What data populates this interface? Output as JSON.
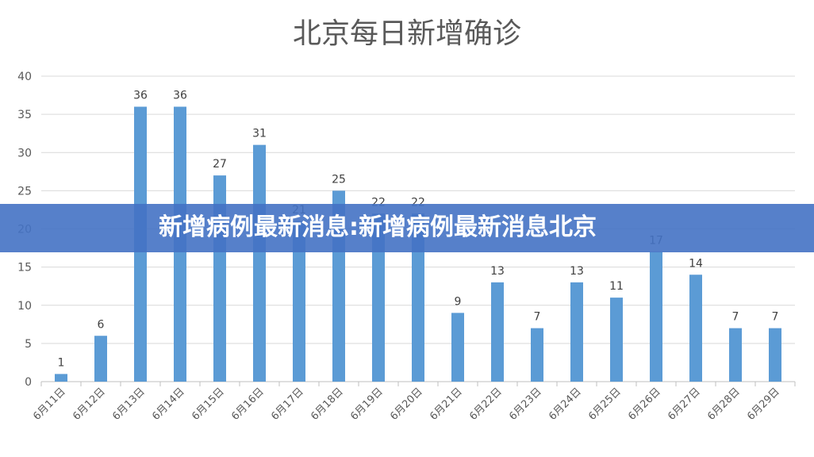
{
  "banner": {
    "text": "新增病例最新消息:新增病例最新消息北京"
  },
  "chart_data": {
    "type": "bar",
    "title": "北京每日新增确诊",
    "xlabel": "",
    "ylabel": "",
    "ylim": [
      0,
      40
    ],
    "yticks": [
      0,
      5,
      10,
      15,
      20,
      25,
      30,
      35,
      40
    ],
    "grid": true,
    "legend": "none",
    "color": "#5b9bd5",
    "categories": [
      "6月11日",
      "6月12日",
      "6月13日",
      "6月14日",
      "6月15日",
      "6月16日",
      "6月17日",
      "6月18日",
      "6月19日",
      "6月20日",
      "6月21日",
      "6月22日",
      "6月23日",
      "6月24日",
      "6月25日",
      "6月26日",
      "6月27日",
      "6月28日",
      "6月29日"
    ],
    "values": [
      1,
      6,
      36,
      36,
      27,
      31,
      21,
      25,
      22,
      22,
      9,
      13,
      7,
      13,
      11,
      17,
      14,
      7,
      7
    ]
  }
}
